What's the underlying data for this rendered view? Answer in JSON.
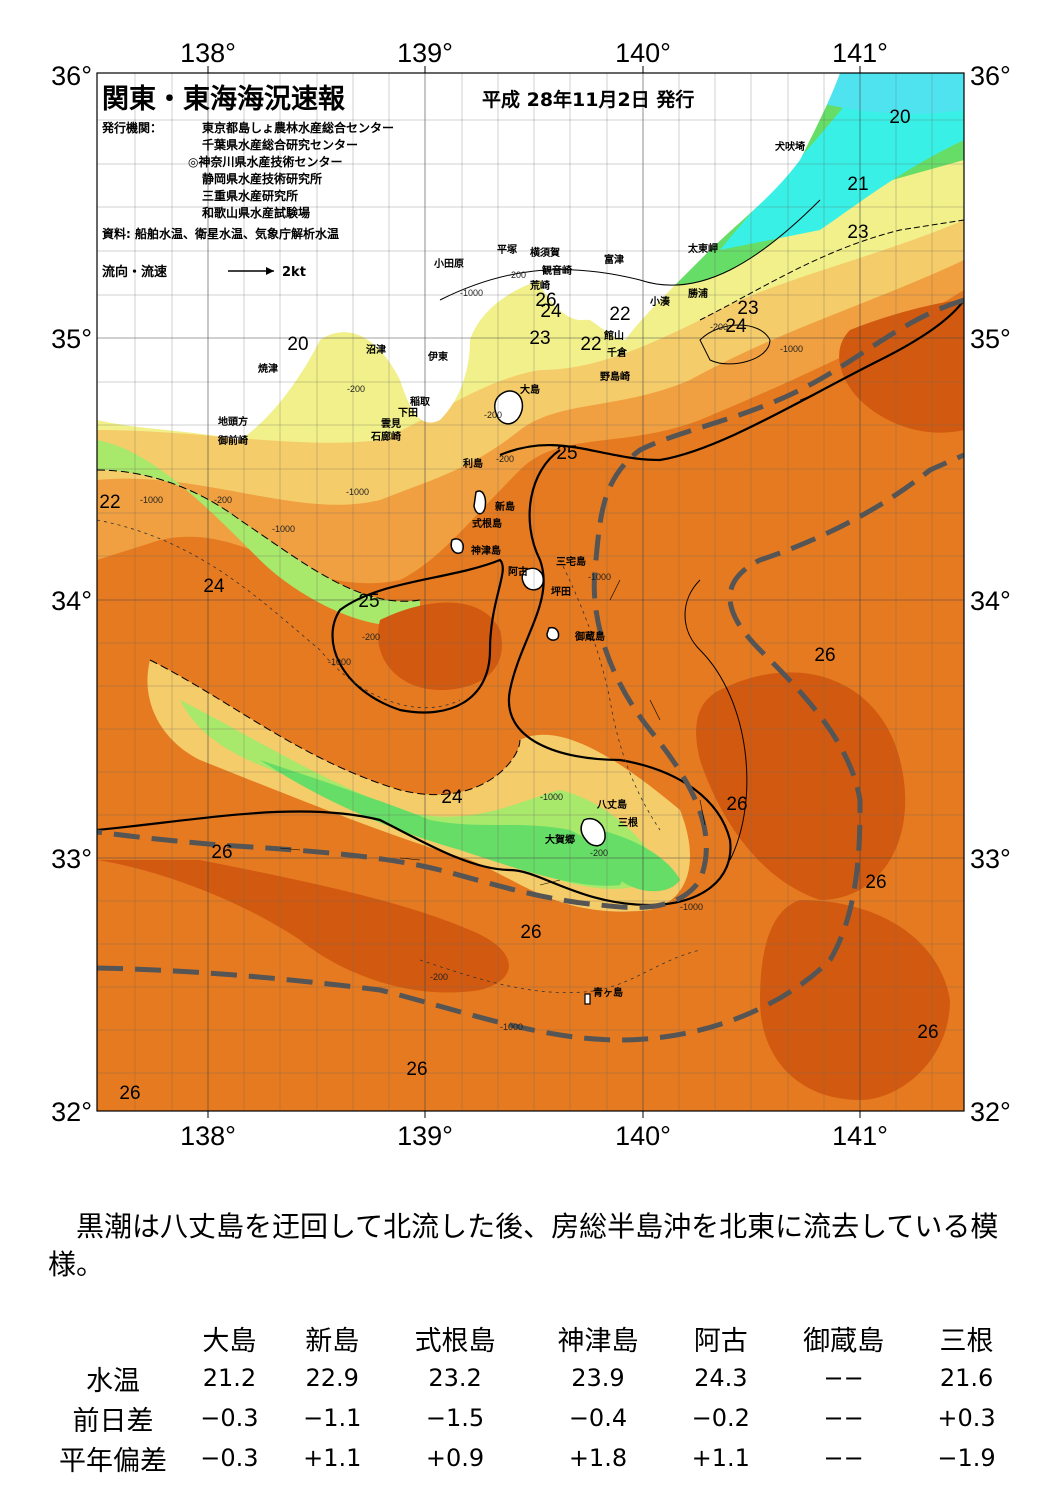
{
  "header": {
    "title": "関東・東海海況速報",
    "issue_date": "平成 28年11月2日 発行",
    "issuers_label": "発行機関：",
    "issuers": [
      "東京都島しょ農林水産総合センター",
      "千葉県水産総合研究センター",
      "◎神奈川県水産技術センター",
      "静岡県水産技術研究所",
      "三重県水産研究所",
      "和歌山県水産試験場"
    ],
    "sources": "資料: 船舶水温、衛星水温、気象庁解析水温",
    "legend_label": "流向・流速",
    "legend_speed": "2kt"
  },
  "axes": {
    "lon_labels": [
      "138°",
      "139°",
      "140°",
      "141°"
    ],
    "lat_labels": [
      "36°",
      "35°",
      "34°",
      "33°",
      "32°"
    ]
  },
  "place_names": [
    "犬吠埼",
    "太東岬",
    "勝浦",
    "小湊",
    "富津",
    "館山",
    "千倉",
    "野島崎",
    "横須賀",
    "観音崎",
    "荒崎",
    "平塚",
    "小田原",
    "沼津",
    "伊東",
    "稲取",
    "下田",
    "雲見",
    "石廊崎",
    "焼津",
    "地頭方",
    "御前崎",
    "大島",
    "利島",
    "新島",
    "式根島",
    "神津島",
    "三宅島",
    "阿古",
    "坪田",
    "御蔵島",
    "八丈島",
    "三根",
    "大賀郷",
    "青ヶ島"
  ],
  "isotherm_labels": [
    "20",
    "21",
    "23",
    "23",
    "24",
    "20",
    "24",
    "23",
    "22",
    "22",
    "25",
    "22",
    "24",
    "25",
    "26",
    "26",
    "24",
    "26",
    "26",
    "26",
    "26",
    "26",
    "26",
    "26"
  ],
  "depth_labels": [
    "-200",
    "-1000",
    "-200",
    "-1000",
    "-200",
    "-1000",
    "-200",
    "-200",
    "-1000",
    "-200",
    "-1000",
    "-200",
    "-1000",
    "-1000",
    "-1000",
    "-200",
    "-1000",
    "-200",
    "-1000"
  ],
  "colors": {
    "land": "#ffffff",
    "t_below_20": "#4fe3f0",
    "t_20": "#38f0e6",
    "t_21": "#66dd66",
    "t_22": "#a8e86a",
    "t_23": "#f1f08a",
    "t_24": "#f5cc6a",
    "t_25": "#f0a040",
    "t_26": "#e67a20",
    "t_27": "#d25a10",
    "kuroshio_axis": "#555555"
  },
  "summary": "黒潮は八丈島を迂回して北流した後、房総半島沖を北東に流去している模様。",
  "table": {
    "columns": [
      "大島",
      "新島",
      "式根島",
      "神津島",
      "阿古",
      "御蔵島",
      "三根"
    ],
    "rows": [
      {
        "label": "水温",
        "values": [
          "21.2",
          "22.9",
          "23.2",
          "23.9",
          "24.3",
          "−−",
          "21.6"
        ]
      },
      {
        "label": "前日差",
        "values": [
          "−0.3",
          "−1.1",
          "−1.5",
          "−0.4",
          "−0.2",
          "−−",
          "+0.3"
        ]
      },
      {
        "label": "平年偏差",
        "values": [
          "−0.3",
          "+1.1",
          "+0.9",
          "+1.8",
          "+1.1",
          "−−",
          "−1.9"
        ]
      }
    ]
  }
}
